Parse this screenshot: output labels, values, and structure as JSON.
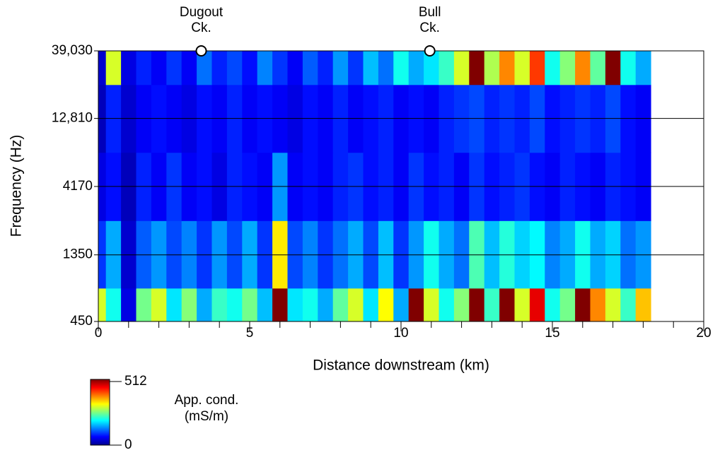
{
  "chart_data": {
    "type": "heatmap",
    "colormap": "jet",
    "xlabel": "Distance downstream (km)",
    "ylabel": "Frequency (Hz)",
    "yscale": "log",
    "grid": true,
    "xlim": [
      0,
      20
    ],
    "xticks": [
      0,
      5,
      10,
      15,
      20
    ],
    "xminorticks": [
      1,
      2,
      3,
      4,
      6,
      7,
      8,
      9,
      11,
      12,
      13,
      14,
      16,
      17,
      18,
      19
    ],
    "ylim": [
      450,
      39030
    ],
    "yticks": [
      450,
      1350,
      4170,
      {
        "value": 12810,
        "label": "12,810"
      },
      {
        "value": 39030,
        "label": "39,030"
      }
    ],
    "x": [
      0,
      0.5,
      1,
      1.5,
      2,
      2.5,
      3,
      3.5,
      4,
      4.5,
      5,
      5.5,
      6,
      6.5,
      7,
      7.5,
      8,
      8.5,
      9,
      9.5,
      10,
      10.5,
      11,
      11.5,
      12,
      12.5,
      13,
      13.5,
      14,
      14.5,
      15,
      15.5,
      16,
      16.5,
      17,
      17.5,
      18
    ],
    "y": [
      450,
      1350,
      4170,
      12810,
      39030
    ],
    "z": [
      [
        300,
        200,
        50,
        250,
        300,
        180,
        260,
        150,
        220,
        200,
        250,
        160,
        512,
        180,
        200,
        150,
        240,
        300,
        180,
        320,
        150,
        512,
        300,
        200,
        260,
        512,
        220,
        512,
        300,
        460,
        200,
        250,
        512,
        380,
        300,
        220,
        350
      ],
      [
        90,
        150,
        40,
        110,
        140,
        100,
        130,
        90,
        140,
        100,
        150,
        90,
        330,
        100,
        130,
        90,
        120,
        150,
        100,
        160,
        90,
        140,
        200,
        150,
        120,
        230,
        160,
        210,
        170,
        190,
        130,
        150,
        200,
        150,
        170,
        120,
        140
      ],
      [
        50,
        70,
        30,
        80,
        60,
        90,
        60,
        70,
        50,
        80,
        70,
        60,
        140,
        60,
        70,
        60,
        80,
        90,
        70,
        80,
        60,
        90,
        70,
        80,
        60,
        90,
        70,
        80,
        90,
        70,
        60,
        80,
        70,
        60,
        80,
        70,
        60
      ],
      [
        30,
        80,
        40,
        60,
        70,
        60,
        50,
        70,
        60,
        80,
        60,
        70,
        60,
        50,
        70,
        60,
        80,
        60,
        70,
        80,
        60,
        70,
        60,
        80,
        90,
        100,
        80,
        90,
        80,
        100,
        70,
        80,
        90,
        80,
        100,
        70,
        60
      ],
      [
        40,
        300,
        50,
        80,
        60,
        90,
        60,
        120,
        80,
        100,
        70,
        130,
        90,
        60,
        110,
        80,
        140,
        90,
        160,
        120,
        200,
        150,
        180,
        220,
        300,
        512,
        280,
        380,
        300,
        420,
        200,
        260,
        380,
        240,
        512,
        200,
        150
      ]
    ],
    "zlim": [
      0,
      512
    ],
    "colorbar_label": [
      "App. cond.",
      "(mS/m)"
    ],
    "annotations": [
      {
        "lines": [
          "Dugout",
          "Ck."
        ],
        "x": 3.4
      },
      {
        "lines": [
          "Bull",
          "Ck."
        ],
        "x": 10.95
      }
    ]
  }
}
